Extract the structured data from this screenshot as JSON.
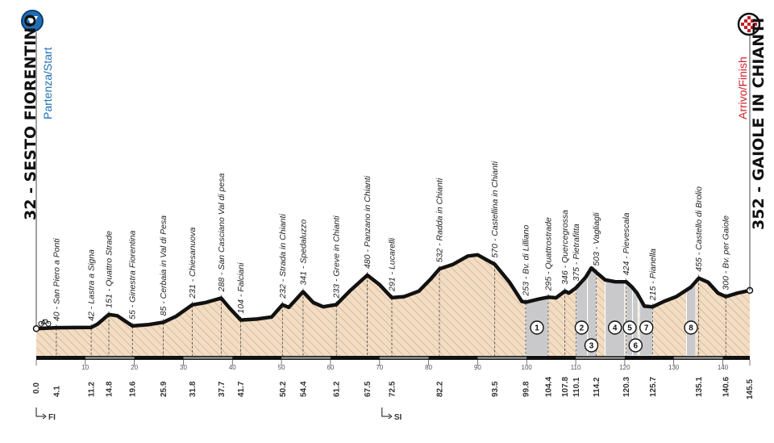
{
  "start": {
    "title": "32 - SESTO FIORENTINO",
    "subtitle": "Partenza/Start",
    "km": "0.0",
    "color": "#1f6fb5"
  },
  "finish": {
    "title": "352 - GAIOLE IN CHIANTI",
    "subtitle": "Arrivo/Finish",
    "km": "145.5",
    "color": "#d0202a"
  },
  "province_markers": [
    {
      "label": "FI",
      "km": 0.0
    },
    {
      "label": "SI",
      "km": 70.5
    }
  ],
  "chart_data": {
    "type": "area",
    "xlim": [
      0,
      145.5
    ],
    "x_ticks": [
      10,
      20,
      30,
      40,
      50,
      60,
      70,
      80,
      90,
      100,
      110,
      120,
      130,
      140
    ],
    "colors": {
      "terrain": "#f2ddc3",
      "hatch": "#c9a58a",
      "gravel": "#c9c9cb",
      "profile": "#111111",
      "axis_bar": "#111111"
    },
    "profile": [
      [
        0.0,
        32
      ],
      [
        4.1,
        40
      ],
      [
        8.0,
        41
      ],
      [
        11.2,
        42
      ],
      [
        12.5,
        70
      ],
      [
        14.8,
        151
      ],
      [
        16.5,
        140
      ],
      [
        19.6,
        55
      ],
      [
        23.0,
        66
      ],
      [
        25.9,
        85
      ],
      [
        28.5,
        135
      ],
      [
        31.8,
        231
      ],
      [
        34.5,
        250
      ],
      [
        37.7,
        288
      ],
      [
        39.5,
        200
      ],
      [
        41.7,
        104
      ],
      [
        45.0,
        112
      ],
      [
        48.0,
        130
      ],
      [
        50.2,
        232
      ],
      [
        51.5,
        210
      ],
      [
        54.4,
        341
      ],
      [
        56.5,
        250
      ],
      [
        58.5,
        215
      ],
      [
        61.2,
        233
      ],
      [
        64.0,
        350
      ],
      [
        67.5,
        480
      ],
      [
        70.0,
        400
      ],
      [
        72.5,
        291
      ],
      [
        75.0,
        300
      ],
      [
        78.0,
        345
      ],
      [
        80.5,
        450
      ],
      [
        82.2,
        532
      ],
      [
        85.0,
        570
      ],
      [
        88.0,
        640
      ],
      [
        90.0,
        650
      ],
      [
        93.5,
        570
      ],
      [
        96.5,
        420
      ],
      [
        99.0,
        260
      ],
      [
        99.8,
        253
      ],
      [
        102.5,
        280
      ],
      [
        104.4,
        295
      ],
      [
        106.0,
        290
      ],
      [
        107.8,
        346
      ],
      [
        108.6,
        330
      ],
      [
        110.1,
        375
      ],
      [
        112.0,
        460
      ],
      [
        113.2,
        540
      ],
      [
        114.2,
        503
      ],
      [
        116.0,
        440
      ],
      [
        118.0,
        425
      ],
      [
        120.3,
        424
      ],
      [
        121.5,
        380
      ],
      [
        122.5,
        330
      ],
      [
        124.0,
        220
      ],
      [
        125.7,
        215
      ],
      [
        128.0,
        260
      ],
      [
        130.5,
        300
      ],
      [
        133.5,
        380
      ],
      [
        135.1,
        455
      ],
      [
        137.0,
        420
      ],
      [
        139.0,
        330
      ],
      [
        140.6,
        300
      ],
      [
        143.0,
        330
      ],
      [
        145.5,
        352
      ]
    ],
    "waypoints": [
      {
        "km": 4.1,
        "elev": 40,
        "name": "40 - San Piero a Ponti",
        "km_label": "4.1"
      },
      {
        "km": 11.2,
        "elev": 42,
        "name": "42 - Lastra a Signa",
        "km_label": "11.2"
      },
      {
        "km": 14.8,
        "elev": 151,
        "name": "151 - Quattro Strade",
        "km_label": "14.8"
      },
      {
        "km": 19.6,
        "elev": 55,
        "name": "55 - Ginestra Fiorentina",
        "km_label": "19.6"
      },
      {
        "km": 25.9,
        "elev": 85,
        "name": "85 - Cerbaia in Val di Pesa",
        "km_label": "25.9"
      },
      {
        "km": 31.8,
        "elev": 231,
        "name": "231 - Chiesanuova",
        "km_label": "31.8"
      },
      {
        "km": 37.7,
        "elev": 288,
        "name": "288 - San Casciano Val di pesa",
        "km_label": "37.7"
      },
      {
        "km": 41.7,
        "elev": 104,
        "name": "104 - Falciani",
        "km_label": "41.7"
      },
      {
        "km": 50.2,
        "elev": 232,
        "name": "232 - Strada in Chianti",
        "km_label": "50.2"
      },
      {
        "km": 54.4,
        "elev": 341,
        "name": "341 - Spedaluzzo",
        "km_label": "54.4"
      },
      {
        "km": 61.2,
        "elev": 233,
        "name": "233 - Greve in Chianti",
        "km_label": "61.2"
      },
      {
        "km": 67.5,
        "elev": 480,
        "name": "480 - Panzano in Chianti",
        "km_label": "67.5"
      },
      {
        "km": 72.5,
        "elev": 291,
        "name": "291 - Lucarelli",
        "km_label": "72.5"
      },
      {
        "km": 82.2,
        "elev": 532,
        "name": "532 - Radda in Chianti",
        "km_label": "82.2"
      },
      {
        "km": 93.5,
        "elev": 570,
        "name": "570 - Castellina in Chianti",
        "km_label": "93.5"
      },
      {
        "km": 99.8,
        "elev": 253,
        "name": "253 - Bv. di Lilliano",
        "km_label": "99.8"
      },
      {
        "km": 104.4,
        "elev": 295,
        "name": "295 - Quattrostrade",
        "km_label": "104.4"
      },
      {
        "km": 107.8,
        "elev": 346,
        "name": "346 - Quercegrossa",
        "km_label": "107.8"
      },
      {
        "km": 110.1,
        "elev": 375,
        "name": "375 - Pietrafitta",
        "km_label": "110.1"
      },
      {
        "km": 114.2,
        "elev": 503,
        "name": "503 - Vagliagli",
        "km_label": "114.2"
      },
      {
        "km": 120.3,
        "elev": 424,
        "name": "424 - Pievescala",
        "km_label": "120.3"
      },
      {
        "km": 125.7,
        "elev": 215,
        "name": "215 - Pianella",
        "km_label": "125.7"
      },
      {
        "km": 135.1,
        "elev": 455,
        "name": "455 - Castello di Brolio",
        "km_label": "135.1"
      },
      {
        "km": 140.6,
        "elev": 300,
        "name": "300 - Bv. per Gaiole",
        "km_label": "140.6"
      }
    ],
    "gravel_sectors": [
      {
        "num": "1",
        "start": 99.8,
        "end": 104.4,
        "badge_km": 102.1,
        "row": 0
      },
      {
        "num": "2",
        "start": 110.1,
        "end": 112.4,
        "badge_km": 111.2,
        "row": 0
      },
      {
        "num": "3",
        "start": 112.4,
        "end": 114.2,
        "badge_km": 113.2,
        "row": 1
      },
      {
        "num": "4",
        "start": 116.0,
        "end": 120.0,
        "badge_km": 118.0,
        "row": 0
      },
      {
        "num": "5",
        "start": 120.3,
        "end": 121.6,
        "badge_km": 121.0,
        "row": 0
      },
      {
        "num": "6",
        "start": 121.6,
        "end": 122.7,
        "badge_km": 122.2,
        "row": 1
      },
      {
        "num": "7",
        "start": 123.0,
        "end": 125.7,
        "badge_km": 124.4,
        "row": 0
      },
      {
        "num": "8",
        "start": 132.6,
        "end": 134.5,
        "badge_km": 133.5,
        "row": 0
      }
    ]
  }
}
